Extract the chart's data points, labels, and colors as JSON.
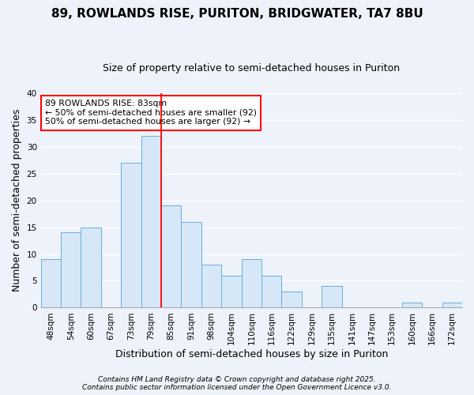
{
  "title": "89, ROWLANDS RISE, PURITON, BRIDGWATER, TA7 8BU",
  "subtitle": "Size of property relative to semi-detached houses in Puriton",
  "xlabel": "Distribution of semi-detached houses by size in Puriton",
  "ylabel": "Number of semi-detached properties",
  "bar_labels": [
    "48sqm",
    "54sqm",
    "60sqm",
    "67sqm",
    "73sqm",
    "79sqm",
    "85sqm",
    "91sqm",
    "98sqm",
    "104sqm",
    "110sqm",
    "116sqm",
    "122sqm",
    "129sqm",
    "135sqm",
    "141sqm",
    "147sqm",
    "153sqm",
    "160sqm",
    "166sqm",
    "172sqm"
  ],
  "bar_values": [
    9,
    14,
    15,
    0,
    27,
    32,
    19,
    16,
    8,
    6,
    9,
    6,
    3,
    0,
    4,
    0,
    0,
    0,
    1,
    0,
    1
  ],
  "bar_color": "#d6e8f7",
  "bar_edgecolor": "#6aaed6",
  "annotation_title": "89 ROWLANDS RISE: 83sqm",
  "annotation_line1": "← 50% of semi-detached houses are smaller (92)",
  "annotation_line2": "50% of semi-detached houses are larger (92) →",
  "median_bar_idx": 6,
  "ylim": [
    0,
    40
  ],
  "yticks": [
    0,
    5,
    10,
    15,
    20,
    25,
    30,
    35,
    40
  ],
  "footnote1": "Contains HM Land Registry data © Crown copyright and database right 2025.",
  "footnote2": "Contains public sector information licensed under the Open Government Licence v3.0.",
  "bg_color": "#eef2fb",
  "grid_color": "#ffffff",
  "title_fontsize": 11,
  "subtitle_fontsize": 9,
  "axis_label_fontsize": 9,
  "tick_fontsize": 7.5,
  "annot_fontsize": 7.8,
  "footnote_fontsize": 6.5
}
